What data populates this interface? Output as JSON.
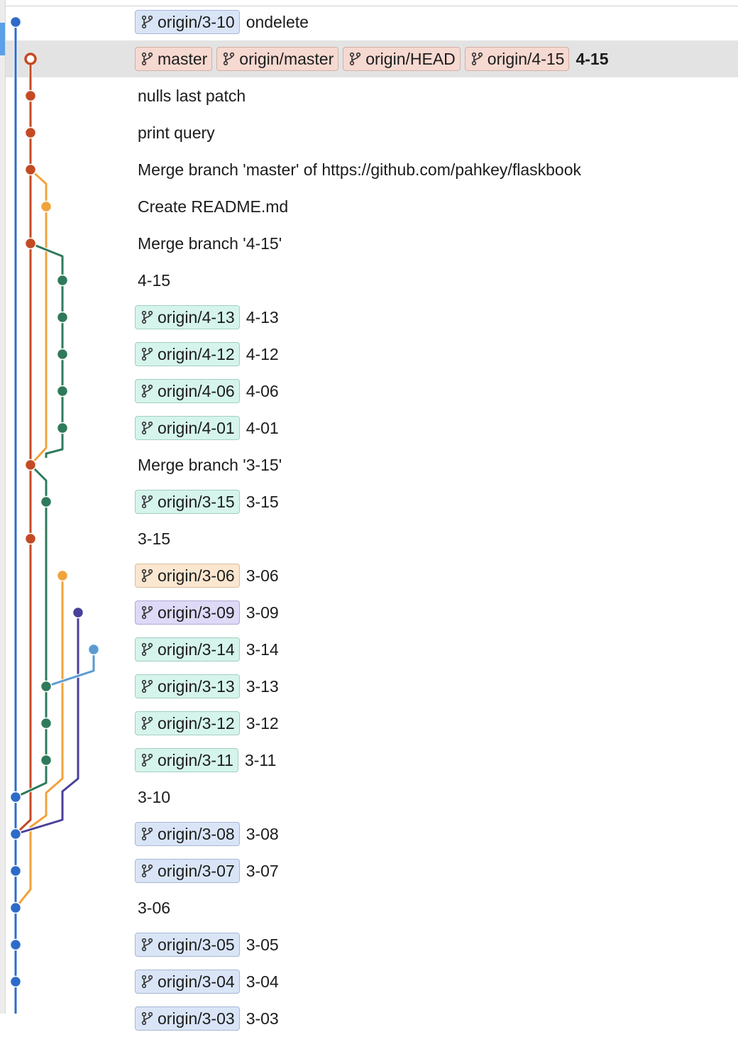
{
  "colors": {
    "blue": "#2d6bc9",
    "red": "#c44a23",
    "orange": "#f0a33c",
    "green": "#2f7a5b",
    "purple": "#48409a",
    "lightblue": "#5b9bd1"
  },
  "commits": [
    {
      "refs": [
        {
          "name": "origin/3-10",
          "style": "blue"
        }
      ],
      "message": "ondelete",
      "bold": false
    },
    {
      "refs": [
        {
          "name": "master",
          "style": "red"
        },
        {
          "name": "origin/master",
          "style": "red"
        },
        {
          "name": "origin/HEAD",
          "style": "red"
        },
        {
          "name": "origin/4-15",
          "style": "red"
        }
      ],
      "message": "4-15",
      "bold": true,
      "selected": true
    },
    {
      "refs": [],
      "message": "nulls last patch"
    },
    {
      "refs": [],
      "message": "print query"
    },
    {
      "refs": [],
      "message": "Merge branch 'master' of https://github.com/pahkey/flaskbook"
    },
    {
      "refs": [],
      "message": "Create README.md"
    },
    {
      "refs": [],
      "message": "Merge branch '4-15'"
    },
    {
      "refs": [],
      "message": "4-15"
    },
    {
      "refs": [
        {
          "name": "origin/4-13",
          "style": "teal"
        }
      ],
      "message": "4-13"
    },
    {
      "refs": [
        {
          "name": "origin/4-12",
          "style": "teal"
        }
      ],
      "message": "4-12"
    },
    {
      "refs": [
        {
          "name": "origin/4-06",
          "style": "teal"
        }
      ],
      "message": "4-06"
    },
    {
      "refs": [
        {
          "name": "origin/4-01",
          "style": "teal"
        }
      ],
      "message": "4-01"
    },
    {
      "refs": [],
      "message": "Merge branch '3-15'"
    },
    {
      "refs": [
        {
          "name": "origin/3-15",
          "style": "teal"
        }
      ],
      "message": "3-15"
    },
    {
      "refs": [],
      "message": "3-15"
    },
    {
      "refs": [
        {
          "name": "origin/3-06",
          "style": "orange"
        }
      ],
      "message": "3-06"
    },
    {
      "refs": [
        {
          "name": "origin/3-09",
          "style": "purple"
        }
      ],
      "message": "3-09"
    },
    {
      "refs": [
        {
          "name": "origin/3-14",
          "style": "teal"
        }
      ],
      "message": "3-14"
    },
    {
      "refs": [
        {
          "name": "origin/3-13",
          "style": "teal"
        }
      ],
      "message": "3-13"
    },
    {
      "refs": [
        {
          "name": "origin/3-12",
          "style": "teal"
        }
      ],
      "message": "3-12"
    },
    {
      "refs": [
        {
          "name": "origin/3-11",
          "style": "teal"
        }
      ],
      "message": "3-11"
    },
    {
      "refs": [],
      "message": "3-10"
    },
    {
      "refs": [
        {
          "name": "origin/3-08",
          "style": "blue"
        }
      ],
      "message": "3-08"
    },
    {
      "refs": [
        {
          "name": "origin/3-07",
          "style": "blue"
        }
      ],
      "message": "3-07"
    },
    {
      "refs": [],
      "message": "3-06"
    },
    {
      "refs": [
        {
          "name": "origin/3-05",
          "style": "blue"
        }
      ],
      "message": "3-05"
    },
    {
      "refs": [
        {
          "name": "origin/3-04",
          "style": "blue"
        }
      ],
      "message": "3-04"
    },
    {
      "refs": [
        {
          "name": "origin/3-03",
          "style": "blue"
        }
      ],
      "message": "3-03"
    }
  ]
}
